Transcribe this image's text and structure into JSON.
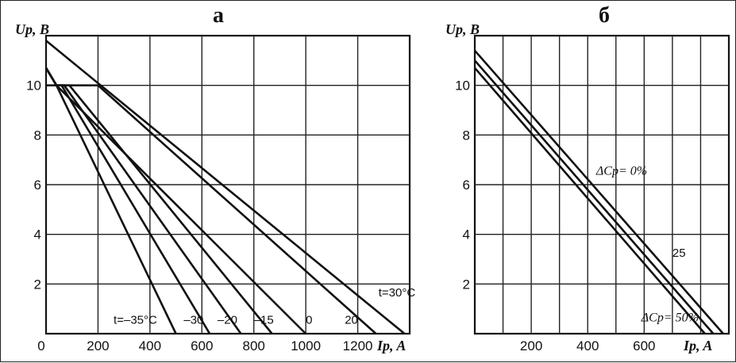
{
  "chart_data": [
    {
      "type": "line",
      "title": "а",
      "ylabel": "Up, В",
      "xlabel": "Ip, A",
      "xlim": [
        0,
        1400
      ],
      "ylim": [
        0,
        12
      ],
      "x_ticks": [
        0,
        200,
        400,
        600,
        800,
        1000,
        1200
      ],
      "y_ticks": [
        2,
        4,
        6,
        8,
        10
      ],
      "grid": true,
      "series": [
        {
          "name": "t=30°C",
          "points": [
            [
              0,
              11.8
            ],
            [
              1380,
              0
            ]
          ]
        },
        {
          "name": "20",
          "points": [
            [
              0,
              10.0
            ],
            [
              200,
              10.0
            ],
            [
              1270,
              0
            ]
          ]
        },
        {
          "name": "0",
          "points": [
            [
              0,
              10.7
            ],
            [
              40,
              10.0
            ],
            [
              1000,
              0
            ]
          ]
        },
        {
          "name": "-15",
          "points": [
            [
              0,
              10.7
            ],
            [
              40,
              10.0
            ],
            [
              90,
              10.0
            ],
            [
              870,
              0
            ]
          ]
        },
        {
          "name": "-20",
          "points": [
            [
              0,
              10.7
            ],
            [
              40,
              10.0
            ],
            [
              70,
              10.0
            ],
            [
              750,
              0
            ]
          ]
        },
        {
          "name": "-30",
          "points": [
            [
              0,
              10.7
            ],
            [
              40,
              10.0
            ],
            [
              60,
              10.0
            ],
            [
              630,
              0
            ]
          ]
        },
        {
          "name": "t=-35°C",
          "points": [
            [
              0,
              10.7
            ],
            [
              40,
              10.0
            ],
            [
              500,
              0
            ]
          ]
        }
      ],
      "labels": [
        {
          "series": "t=30°C",
          "text": "t=30°C",
          "at": [
            1280,
            1.5
          ]
        },
        {
          "series": "20",
          "text": "20",
          "at": [
            1150,
            0.4
          ]
        },
        {
          "series": "0",
          "text": "0",
          "at": [
            1000,
            0.4
          ]
        },
        {
          "series": "-15",
          "text": "–15",
          "at": [
            800,
            0.4
          ]
        },
        {
          "series": "-20",
          "text": "–20",
          "at": [
            660,
            0.4
          ]
        },
        {
          "series": "-30",
          "text": "–30",
          "at": [
            530,
            0.4
          ]
        },
        {
          "series": "t=-35°C",
          "text": "t=–35°C",
          "at": [
            260,
            0.4
          ]
        }
      ]
    },
    {
      "type": "line",
      "title": "б",
      "ylabel": "Up, В",
      "xlabel": "Ip, A",
      "xlim": [
        0,
        900
      ],
      "ylim": [
        0,
        12
      ],
      "x_ticks": [
        200,
        400,
        600
      ],
      "y_ticks": [
        2,
        4,
        6,
        8,
        10
      ],
      "grid": true,
      "series": [
        {
          "name": "ΔCp= 0%",
          "points": [
            [
              0,
              11.4
            ],
            [
              880,
              0
            ]
          ]
        },
        {
          "name": "25",
          "points": [
            [
              0,
              11.0
            ],
            [
              845,
              0
            ]
          ]
        },
        {
          "name": "ΔCp= 50%",
          "points": [
            [
              0,
              10.7
            ],
            [
              815,
              0
            ]
          ]
        }
      ],
      "labels": [
        {
          "series": "ΔCp= 0%",
          "text": "ΔCp= 0%",
          "at": [
            430,
            6.4
          ]
        },
        {
          "series": "25",
          "text": "25",
          "at": [
            700,
            3.1
          ]
        },
        {
          "series": "ΔCp= 50%",
          "text": "ΔCp= 50%",
          "at": [
            590,
            0.5
          ]
        }
      ]
    }
  ]
}
